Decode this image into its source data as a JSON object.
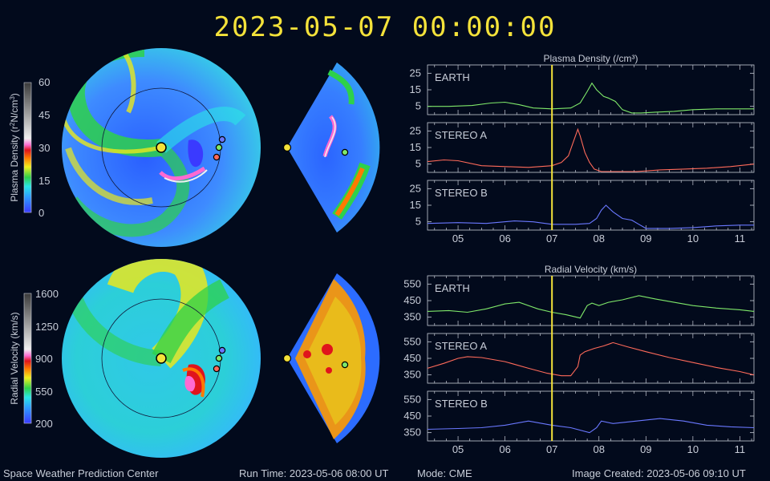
{
  "header": {
    "timestamp": "2023-05-07  00:00:00"
  },
  "colorbars": [
    {
      "label_lines": [
        "Plasma Density (r",
        "2",
        "N/cm",
        "3",
        ")"
      ],
      "ticks": [
        "60",
        "45",
        "30",
        "15",
        "0"
      ]
    },
    {
      "label": "Radial Velocity (km/s)",
      "ticks": [
        "1600",
        "1250",
        "900",
        "550",
        "200"
      ]
    }
  ],
  "footer": {
    "org": "Space Weather Prediction Center",
    "run_time": "Run Time: 2023-05-06 08:00 UT",
    "mode": "Mode: CME",
    "created": "Image Created: 2023-05-06 09:10 UT"
  },
  "colors": {
    "earth": "#7fe86a",
    "stereo_a": "#ff6a5a",
    "stereo_b": "#6a78ff",
    "marker": "#f4e23a",
    "axis": "#c8cdd8"
  },
  "chart_data": [
    {
      "type": "line",
      "title": "Plasma Density (/cm³)",
      "x_ticks": [
        "05",
        "06",
        "07",
        "08",
        "09",
        "10",
        "11"
      ],
      "xlim": [
        4.35,
        11.3
      ],
      "current_x": 7.0,
      "panels": [
        {
          "name": "EARTH",
          "ylim": [
            0,
            30
          ],
          "yticks": [
            "25",
            "15",
            "5"
          ],
          "ytick_values": [
            25,
            15,
            5
          ],
          "color": "#7fe86a",
          "x": [
            4.35,
            4.8,
            5.3,
            5.7,
            6.0,
            6.3,
            6.6,
            7.0,
            7.4,
            7.6,
            7.75,
            7.85,
            7.95,
            8.1,
            8.2,
            8.35,
            8.5,
            8.7,
            8.9,
            9.2,
            9.6,
            10.0,
            10.5,
            11.0,
            11.3
          ],
          "y": [
            5,
            5,
            5.5,
            7,
            7.5,
            6,
            4,
            3.5,
            4,
            7,
            14,
            19,
            15,
            11,
            10,
            8,
            3,
            1,
            1,
            1.5,
            2,
            3,
            3.5,
            3.5,
            3.5
          ]
        },
        {
          "name": "STEREO A",
          "ylim": [
            0,
            30
          ],
          "yticks": [
            "25",
            "15",
            "5"
          ],
          "ytick_values": [
            25,
            15,
            5
          ],
          "color": "#ff6a5a",
          "x": [
            4.35,
            4.7,
            5.0,
            5.5,
            6.0,
            6.5,
            7.0,
            7.2,
            7.35,
            7.45,
            7.55,
            7.6,
            7.7,
            7.8,
            7.9,
            8.05,
            8.3,
            8.8,
            9.3,
            9.8,
            10.3,
            10.8,
            11.3
          ],
          "y": [
            6.5,
            7.5,
            7,
            4,
            3.5,
            3,
            4,
            6,
            10,
            18,
            26,
            22,
            12,
            6,
            2,
            0.5,
            0.5,
            0.5,
            1.5,
            2,
            2.5,
            3.5,
            5
          ]
        },
        {
          "name": "STEREO B",
          "ylim": [
            0,
            30
          ],
          "yticks": [
            "25",
            "15",
            "5"
          ],
          "ytick_values": [
            25,
            15,
            5
          ],
          "color": "#6a78ff",
          "x": [
            4.35,
            5.0,
            5.6,
            6.2,
            6.6,
            7.0,
            7.5,
            7.8,
            7.95,
            8.05,
            8.15,
            8.3,
            8.5,
            8.7,
            8.85,
            9.0,
            9.5,
            10.0,
            10.5,
            11.0,
            11.3
          ],
          "y": [
            4,
            4.5,
            4,
            5.5,
            5,
            3.5,
            3.5,
            4,
            7,
            12,
            15,
            11,
            7,
            6,
            3.5,
            1,
            1,
            1.5,
            2.5,
            3,
            3
          ]
        }
      ]
    },
    {
      "type": "line",
      "title": "Radial Velocity (km/s)",
      "x_ticks": [
        "05",
        "06",
        "07",
        "08",
        "09",
        "10",
        "11"
      ],
      "xlim": [
        4.35,
        11.3
      ],
      "current_x": 7.0,
      "panels": [
        {
          "name": "EARTH",
          "ylim": [
            300,
            600
          ],
          "yticks": [
            "550",
            "450",
            "350"
          ],
          "ytick_values": [
            550,
            450,
            350
          ],
          "color": "#7fe86a",
          "x": [
            4.35,
            4.8,
            5.2,
            5.6,
            6.0,
            6.3,
            6.7,
            7.0,
            7.3,
            7.6,
            7.75,
            7.85,
            8.0,
            8.2,
            8.5,
            8.85,
            9.2,
            9.6,
            10.0,
            10.5,
            11.0,
            11.3
          ],
          "y": [
            385,
            390,
            380,
            400,
            430,
            440,
            400,
            380,
            365,
            345,
            420,
            435,
            420,
            440,
            455,
            480,
            460,
            440,
            420,
            405,
            395,
            385
          ]
        },
        {
          "name": "STEREO A",
          "ylim": [
            300,
            600
          ],
          "yticks": [
            "550",
            "450",
            "350"
          ],
          "ytick_values": [
            550,
            450,
            350
          ],
          "color": "#ff6a5a",
          "x": [
            4.35,
            4.7,
            5.0,
            5.2,
            5.5,
            6.0,
            6.5,
            6.9,
            7.2,
            7.4,
            7.55,
            7.6,
            7.7,
            7.9,
            8.1,
            8.3,
            8.6,
            9.0,
            9.5,
            10.0,
            10.5,
            11.0,
            11.3
          ],
          "y": [
            390,
            420,
            450,
            460,
            455,
            430,
            390,
            360,
            345,
            345,
            400,
            470,
            490,
            510,
            525,
            545,
            520,
            490,
            455,
            425,
            395,
            370,
            350
          ]
        },
        {
          "name": "STEREO B",
          "ylim": [
            300,
            600
          ],
          "yticks": [
            "550",
            "450",
            "350"
          ],
          "ytick_values": [
            550,
            450,
            350
          ],
          "color": "#6a78ff",
          "x": [
            4.35,
            5.0,
            5.5,
            6.0,
            6.5,
            7.0,
            7.4,
            7.8,
            7.95,
            8.05,
            8.3,
            8.8,
            9.3,
            9.8,
            10.3,
            10.8,
            11.3
          ],
          "y": [
            370,
            375,
            380,
            395,
            420,
            395,
            380,
            350,
            380,
            420,
            405,
            420,
            435,
            420,
            395,
            385,
            380
          ]
        }
      ]
    }
  ]
}
